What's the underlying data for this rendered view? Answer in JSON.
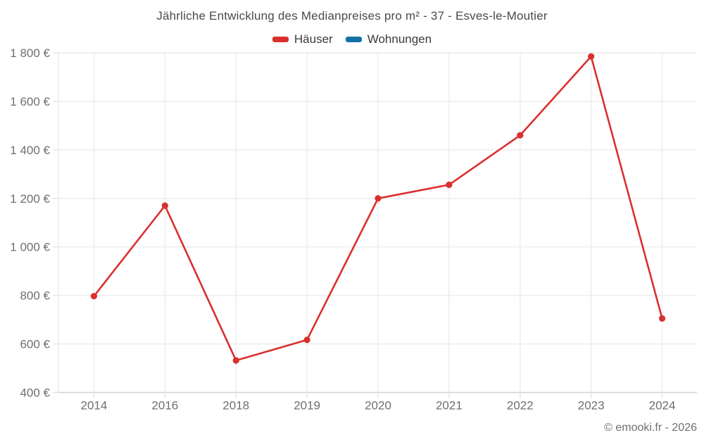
{
  "chart": {
    "title": "Jährliche Entwicklung des Medianpreises pro m² - 37 - Esves-le-Moutier",
    "footer": "© emooki.fr - 2026"
  },
  "chart_data": {
    "type": "line",
    "title": "Jährliche Entwicklung des Medianpreises pro m² - 37 - Esves-le-Moutier",
    "categories": [
      "2014",
      "2016",
      "2018",
      "2019",
      "2020",
      "2021",
      "2022",
      "2023",
      "2024"
    ],
    "series": [
      {
        "name": "Häuser",
        "color": "#d9302e",
        "values": [
          797,
          1170,
          532,
          617,
          1200,
          1256,
          1460,
          1785,
          705
        ]
      },
      {
        "name": "Wohnungen",
        "color": "#1272a5",
        "values": []
      }
    ],
    "xlabel": "",
    "ylabel": "",
    "ylim": [
      400,
      1800
    ],
    "y_ticks": [
      400,
      600,
      800,
      1000,
      1200,
      1400,
      1600,
      1800
    ],
    "y_tick_labels": [
      "400 €",
      "600 €",
      "800 €",
      "1 000 €",
      "1 200 €",
      "1 400 €",
      "1 600 €",
      "1 800 €"
    ],
    "grid": true,
    "legend_position": "top"
  },
  "colors": {
    "background": "#ffffff",
    "grid": "#ececec",
    "axis_line": "#d2d2d2",
    "tick_mark": "#e3e3e3",
    "axis_text": "#6f6f6f",
    "title_text": "#4a4a4a",
    "legend_text": "#3b3b3b"
  }
}
